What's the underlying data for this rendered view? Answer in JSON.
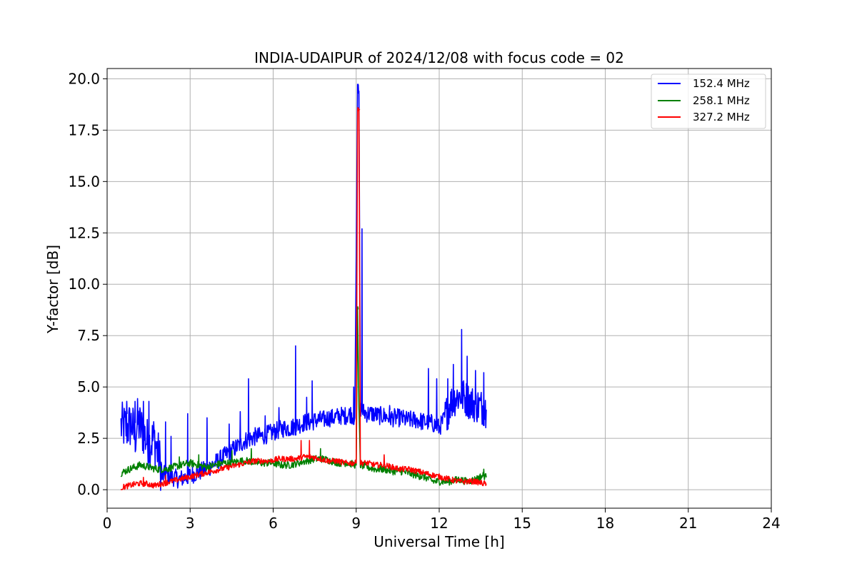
{
  "chart_data": {
    "type": "line",
    "title": "INDIA-UDAIPUR of 2024/12/08 with focus code = 02",
    "xlabel": "Universal Time [h]",
    "ylabel": "Y-factor [dB]",
    "xlim": [
      0,
      24
    ],
    "ylim": [
      -0.9,
      20.5
    ],
    "xticks": [
      0,
      3,
      6,
      9,
      12,
      15,
      18,
      21,
      24
    ],
    "yticks": [
      0.0,
      2.5,
      5.0,
      7.5,
      10.0,
      12.5,
      15.0,
      17.5,
      20.0
    ],
    "xtick_labels": [
      "0",
      "3",
      "6",
      "9",
      "12",
      "15",
      "18",
      "21",
      "24"
    ],
    "ytick_labels": [
      "0.0",
      "2.5",
      "5.0",
      "7.5",
      "10.0",
      "12.5",
      "15.0",
      "17.5",
      "20.0"
    ],
    "grid": true,
    "legend_position": "top-right",
    "series": [
      {
        "name": "152.4 MHz",
        "color": "#0000ff",
        "x": [
          0.5,
          0.7,
          0.9,
          1.0,
          1.1,
          1.3,
          1.5,
          1.7,
          1.9,
          2.0,
          2.1,
          2.2,
          2.4,
          2.6,
          2.8,
          3.0,
          3.2,
          3.4,
          3.6,
          3.8,
          4.0,
          4.2,
          4.4,
          4.6,
          4.8,
          5.0,
          5.2,
          5.4,
          5.6,
          5.8,
          6.0,
          6.2,
          6.4,
          6.6,
          6.8,
          7.0,
          7.2,
          7.4,
          7.6,
          7.8,
          8.0,
          8.2,
          8.4,
          8.6,
          8.8,
          8.95,
          9.05,
          9.1,
          9.15,
          9.25,
          9.4,
          9.6,
          9.8,
          10.0,
          10.2,
          10.4,
          10.6,
          10.8,
          11.0,
          11.2,
          11.4,
          11.6,
          11.8,
          12.0,
          12.2,
          12.4,
          12.6,
          12.8,
          13.0,
          13.2,
          13.4,
          13.6,
          13.7
        ],
        "y": [
          3.1,
          3.0,
          3.2,
          2.5,
          3.3,
          2.8,
          2.2,
          2.5,
          1.4,
          0.6,
          0.8,
          0.7,
          0.6,
          0.5,
          0.6,
          0.7,
          0.8,
          0.9,
          1.0,
          1.2,
          1.4,
          1.6,
          1.8,
          2.0,
          2.2,
          2.4,
          2.5,
          2.6,
          2.6,
          2.7,
          2.8,
          2.9,
          3.0,
          3.0,
          3.1,
          3.2,
          3.3,
          3.3,
          3.4,
          3.4,
          3.5,
          3.5,
          3.6,
          3.6,
          3.7,
          3.5,
          19.3,
          19.4,
          4.0,
          3.8,
          3.7,
          3.7,
          3.6,
          3.6,
          3.5,
          3.5,
          3.5,
          3.4,
          3.4,
          3.4,
          3.3,
          3.3,
          3.2,
          3.0,
          3.5,
          4.2,
          4.5,
          4.6,
          4.4,
          4.2,
          4.1,
          4.0,
          3.9
        ],
        "spikes": [
          [
            0.7,
            4.3
          ],
          [
            1.0,
            4.3
          ],
          [
            1.3,
            4.3
          ],
          [
            1.5,
            4.3
          ],
          [
            2.1,
            3.3
          ],
          [
            2.3,
            2.6
          ],
          [
            2.9,
            3.7
          ],
          [
            3.6,
            3.5
          ],
          [
            4.4,
            3.2
          ],
          [
            4.8,
            3.8
          ],
          [
            5.1,
            5.4
          ],
          [
            5.7,
            3.6
          ],
          [
            6.2,
            4.0
          ],
          [
            6.8,
            7.0
          ],
          [
            7.2,
            4.5
          ],
          [
            7.4,
            5.3
          ],
          [
            8.9,
            5.0
          ],
          [
            9.05,
            19.5
          ],
          [
            9.2,
            12.7
          ],
          [
            10.2,
            4.1
          ],
          [
            11.6,
            5.9
          ],
          [
            11.9,
            5.4
          ],
          [
            12.3,
            5.4
          ],
          [
            12.5,
            6.1
          ],
          [
            12.8,
            7.8
          ],
          [
            13.0,
            6.5
          ],
          [
            13.3,
            5.8
          ],
          [
            13.6,
            5.7
          ]
        ]
      },
      {
        "name": "258.1 MHz",
        "color": "#008000",
        "x": [
          0.5,
          0.8,
          1.0,
          1.2,
          1.5,
          1.8,
          2.1,
          2.4,
          2.7,
          3.0,
          3.3,
          3.6,
          3.9,
          4.2,
          4.5,
          4.8,
          5.1,
          5.4,
          5.7,
          6.0,
          6.3,
          6.6,
          6.9,
          7.2,
          7.5,
          7.8,
          8.1,
          8.4,
          8.7,
          9.0,
          9.05,
          9.1,
          9.15,
          9.4,
          9.7,
          10.0,
          10.3,
          10.6,
          10.9,
          11.2,
          11.5,
          11.8,
          12.1,
          12.4,
          12.7,
          13.0,
          13.3,
          13.6,
          13.7
        ],
        "y": [
          0.8,
          1.0,
          1.1,
          1.2,
          1.1,
          1.0,
          1.0,
          1.1,
          1.2,
          1.3,
          1.2,
          1.1,
          1.2,
          1.3,
          1.3,
          1.4,
          1.4,
          1.3,
          1.3,
          1.3,
          1.2,
          1.2,
          1.3,
          1.4,
          1.5,
          1.5,
          1.4,
          1.3,
          1.3,
          1.2,
          8.8,
          4.0,
          1.2,
          1.1,
          1.0,
          1.0,
          0.9,
          0.9,
          0.8,
          0.7,
          0.6,
          0.4,
          0.4,
          0.4,
          0.5,
          0.4,
          0.5,
          0.7,
          0.6
        ],
        "spikes": [
          [
            2.6,
            1.6
          ],
          [
            3.3,
            1.7
          ],
          [
            4.5,
            1.9
          ],
          [
            5.2,
            2.0
          ],
          [
            7.7,
            2.0
          ],
          [
            9.05,
            8.9
          ],
          [
            11.3,
            1.0
          ],
          [
            13.6,
            1.0
          ]
        ]
      },
      {
        "name": "327.2 MHz",
        "color": "#ff0000",
        "x": [
          0.5,
          0.8,
          1.1,
          1.4,
          1.7,
          2.0,
          2.3,
          2.6,
          2.9,
          3.2,
          3.5,
          3.8,
          4.1,
          4.4,
          4.7,
          5.0,
          5.3,
          5.6,
          5.9,
          6.2,
          6.5,
          6.8,
          7.1,
          7.4,
          7.7,
          8.0,
          8.3,
          8.6,
          8.9,
          9.0,
          9.05,
          9.1,
          9.15,
          9.4,
          9.7,
          10.0,
          10.3,
          10.6,
          10.9,
          11.2,
          11.5,
          11.8,
          12.1,
          12.4,
          12.7,
          13.0,
          13.3,
          13.6,
          13.7
        ],
        "y": [
          0.1,
          0.2,
          0.3,
          0.3,
          0.2,
          0.3,
          0.4,
          0.5,
          0.6,
          0.7,
          0.8,
          0.9,
          1.0,
          1.1,
          1.2,
          1.3,
          1.4,
          1.4,
          1.4,
          1.5,
          1.5,
          1.5,
          1.6,
          1.6,
          1.5,
          1.4,
          1.4,
          1.3,
          1.3,
          1.3,
          18.6,
          18.5,
          1.3,
          1.3,
          1.2,
          1.2,
          1.1,
          1.0,
          1.0,
          0.9,
          0.8,
          0.7,
          0.6,
          0.5,
          0.4,
          0.4,
          0.4,
          0.3,
          0.3
        ],
        "spikes": [
          [
            1.3,
            0.6
          ],
          [
            2.1,
            0.7
          ],
          [
            7.0,
            2.4
          ],
          [
            7.3,
            2.4
          ],
          [
            9.05,
            18.6
          ],
          [
            9.1,
            18.5
          ],
          [
            10.0,
            1.7
          ]
        ]
      }
    ]
  }
}
